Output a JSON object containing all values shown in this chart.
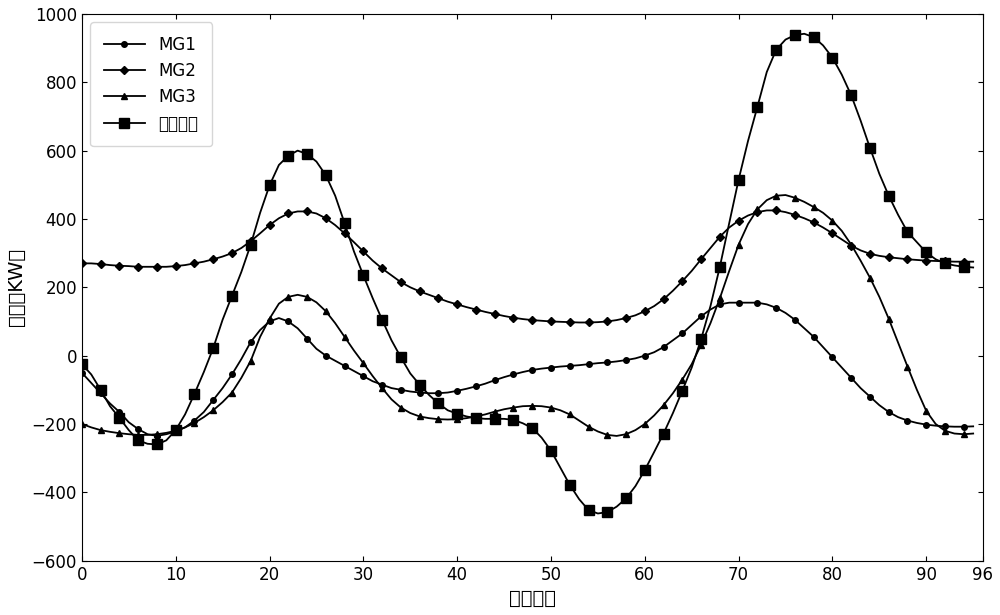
{
  "xlabel": "优化周期",
  "ylabel": "功率（KW）",
  "xlim": [
    0,
    96
  ],
  "ylim": [
    -600,
    1000
  ],
  "xticks": [
    0,
    10,
    20,
    30,
    40,
    50,
    60,
    70,
    80,
    90,
    96
  ],
  "yticks": [
    -600,
    -400,
    -200,
    0,
    200,
    400,
    600,
    800,
    1000
  ],
  "legend": [
    "MG1",
    "MG2",
    "MG3",
    "总净负荷"
  ],
  "markers": [
    "o",
    "D",
    "^",
    "s"
  ],
  "background": "#ffffff",
  "MG1": [
    -50,
    -80,
    -110,
    -140,
    -165,
    -195,
    -215,
    -230,
    -235,
    -230,
    -222,
    -210,
    -190,
    -165,
    -130,
    -95,
    -55,
    -10,
    40,
    75,
    100,
    110,
    100,
    80,
    50,
    20,
    0,
    -15,
    -30,
    -45,
    -60,
    -75,
    -85,
    -95,
    -100,
    -105,
    -108,
    -110,
    -110,
    -108,
    -103,
    -97,
    -90,
    -82,
    -72,
    -63,
    -55,
    -48,
    -42,
    -38,
    -35,
    -32,
    -30,
    -28,
    -25,
    -22,
    -20,
    -17,
    -13,
    -8,
    0,
    10,
    25,
    45,
    65,
    90,
    115,
    135,
    150,
    155,
    155,
    155,
    155,
    150,
    140,
    125,
    105,
    80,
    55,
    25,
    -5,
    -35,
    -65,
    -95,
    -120,
    -145,
    -165,
    -180,
    -190,
    -197,
    -202,
    -205,
    -207,
    -208,
    -208,
    -207
  ],
  "MG2": [
    270,
    270,
    268,
    265,
    263,
    262,
    260,
    260,
    260,
    260,
    262,
    265,
    270,
    275,
    282,
    290,
    300,
    315,
    335,
    358,
    382,
    402,
    416,
    422,
    422,
    416,
    402,
    382,
    358,
    332,
    305,
    278,
    255,
    235,
    215,
    200,
    188,
    178,
    168,
    158,
    150,
    142,
    135,
    128,
    122,
    116,
    111,
    107,
    104,
    102,
    100,
    99,
    98,
    97,
    97,
    98,
    100,
    104,
    110,
    118,
    130,
    145,
    165,
    190,
    218,
    248,
    282,
    315,
    348,
    375,
    395,
    410,
    420,
    425,
    425,
    420,
    412,
    402,
    390,
    375,
    358,
    340,
    322,
    308,
    298,
    292,
    288,
    285,
    282,
    280,
    278,
    277,
    276,
    275,
    275,
    275
  ],
  "MG3": [
    -200,
    -210,
    -218,
    -223,
    -227,
    -230,
    -232,
    -232,
    -230,
    -226,
    -220,
    -210,
    -197,
    -180,
    -160,
    -136,
    -108,
    -65,
    -15,
    55,
    108,
    152,
    172,
    178,
    172,
    156,
    130,
    95,
    55,
    15,
    -22,
    -60,
    -95,
    -128,
    -152,
    -168,
    -178,
    -183,
    -186,
    -187,
    -186,
    -183,
    -178,
    -172,
    -164,
    -157,
    -152,
    -148,
    -147,
    -148,
    -152,
    -160,
    -172,
    -190,
    -208,
    -222,
    -232,
    -235,
    -230,
    -218,
    -200,
    -175,
    -145,
    -110,
    -70,
    -25,
    32,
    95,
    168,
    248,
    325,
    385,
    428,
    455,
    468,
    470,
    462,
    450,
    435,
    418,
    395,
    365,
    325,
    278,
    228,
    172,
    108,
    38,
    -32,
    -100,
    -162,
    -200,
    -220,
    -228,
    -230,
    -228
  ],
  "total": [
    -25,
    -55,
    -100,
    -148,
    -182,
    -218,
    -248,
    -258,
    -260,
    -248,
    -218,
    -172,
    -112,
    -48,
    22,
    105,
    175,
    245,
    325,
    418,
    498,
    558,
    585,
    600,
    590,
    568,
    528,
    468,
    388,
    305,
    235,
    168,
    105,
    45,
    -5,
    -52,
    -85,
    -115,
    -140,
    -160,
    -170,
    -178,
    -183,
    -185,
    -185,
    -185,
    -188,
    -198,
    -212,
    -240,
    -278,
    -328,
    -378,
    -420,
    -452,
    -462,
    -458,
    -442,
    -418,
    -382,
    -335,
    -282,
    -228,
    -168,
    -103,
    -35,
    48,
    145,
    260,
    388,
    515,
    628,
    728,
    830,
    895,
    925,
    938,
    942,
    932,
    908,
    872,
    822,
    762,
    688,
    608,
    532,
    468,
    412,
    362,
    332,
    302,
    282,
    270,
    264,
    260,
    258
  ]
}
